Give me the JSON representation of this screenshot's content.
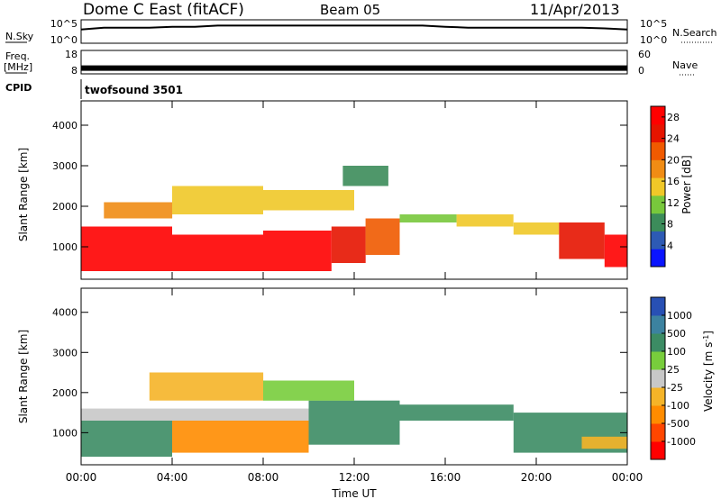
{
  "header": {
    "station": "Dome C East (fitACF)",
    "beam": "Beam 05",
    "date": "11/Apr/2013"
  },
  "side_labels": {
    "nsky": "N.Sky",
    "freq_line1": "Freq.",
    "freq_line2": "[MHz]",
    "cpid": "CPID",
    "nsearch": "N.Search",
    "nave": "Nave"
  },
  "cpid_value": "twofsound 3501",
  "noise_panel": {
    "left_ticks": [
      "10^5",
      "10^0"
    ],
    "right_ticks": [
      "10^5",
      "10^0"
    ]
  },
  "freq_panel": {
    "left_ticks": [
      "18",
      "8"
    ],
    "right_ticks": [
      "60",
      "0"
    ]
  },
  "x_axis": {
    "label": "Time UT",
    "ticks": [
      "00:00",
      "04:00",
      "08:00",
      "12:00",
      "16:00",
      "20:00",
      "00:00"
    ]
  },
  "colors": {
    "power": [
      "#0a14ff",
      "#2d5ab4",
      "#3c8c5a",
      "#78c83c",
      "#f0c828",
      "#f08c14",
      "#f05a00",
      "#e61400",
      "#ff0000"
    ],
    "velocity": [
      "#ff0000",
      "#ff4600",
      "#ff8c00",
      "#f5b428",
      "#c8c8c8",
      "#78cd3c",
      "#3c8c64",
      "#3c82a0",
      "#2850b4"
    ]
  },
  "chart_data": [
    {
      "type": "line",
      "title": "",
      "xlabel": "",
      "ylabel": "N.Sky",
      "x": [
        0,
        1,
        2,
        3,
        4,
        5,
        6,
        7,
        8,
        9,
        10,
        11,
        12,
        13,
        14,
        15,
        16,
        17,
        18,
        19,
        20,
        21,
        22,
        23,
        24
      ],
      "series": [
        {
          "name": "N.Sky",
          "values": [
            1000,
            3000,
            3000,
            3000,
            5000,
            5000,
            10000,
            10000,
            10000,
            10000,
            10000,
            10000,
            10000,
            10000,
            10000,
            10000,
            5000,
            3000,
            3000,
            3000,
            3000,
            3000,
            3000,
            2000,
            1000
          ]
        }
      ]
    },
    {
      "type": "line",
      "title": "",
      "xlabel": "",
      "ylabel": "Freq. [MHz]",
      "x": [
        0,
        24
      ],
      "series": [
        {
          "name": "Freq.",
          "values": [
            10,
            10
          ]
        }
      ],
      "ylim": [
        8,
        18
      ]
    },
    {
      "type": "heatmap",
      "title": "",
      "xlabel": "Time UT",
      "ylabel": "Slant Range [km]",
      "x_ticks": [
        "00:00",
        "04:00",
        "08:00",
        "12:00",
        "16:00",
        "20:00",
        "00:00"
      ],
      "xlim": [
        0,
        24
      ],
      "ylim": [
        200,
        4600
      ],
      "y_ticks": [
        1000,
        2000,
        3000,
        4000
      ],
      "colorbar": {
        "label": "Power [dB]",
        "ticks": [
          4,
          8,
          12,
          16,
          20,
          24,
          28
        ],
        "range": [
          0,
          30
        ]
      },
      "cells": [
        {
          "t0": 0,
          "t1": 4,
          "r0": 400,
          "r1": 1500,
          "v": 28
        },
        {
          "t0": 4,
          "t1": 8,
          "r0": 400,
          "r1": 1300,
          "v": 28
        },
        {
          "t0": 8,
          "t1": 11,
          "r0": 400,
          "r1": 1400,
          "v": 28
        },
        {
          "t0": 11,
          "t1": 12.5,
          "r0": 600,
          "r1": 1500,
          "v": 26
        },
        {
          "t0": 12.5,
          "t1": 14,
          "r0": 800,
          "r1": 1700,
          "v": 22
        },
        {
          "t0": 1,
          "t1": 4,
          "r0": 1700,
          "r1": 2100,
          "v": 18
        },
        {
          "t0": 4,
          "t1": 8,
          "r0": 1800,
          "r1": 2500,
          "v": 16
        },
        {
          "t0": 8,
          "t1": 12,
          "r0": 1900,
          "r1": 2400,
          "v": 14
        },
        {
          "t0": 11.5,
          "t1": 13.5,
          "r0": 2500,
          "r1": 3000,
          "v": 8
        },
        {
          "t0": 14,
          "t1": 16.5,
          "r0": 1600,
          "r1": 1800,
          "v": 12
        },
        {
          "t0": 16.5,
          "t1": 19,
          "r0": 1500,
          "r1": 1800,
          "v": 14
        },
        {
          "t0": 19,
          "t1": 21,
          "r0": 1300,
          "r1": 1600,
          "v": 16
        },
        {
          "t0": 21,
          "t1": 23,
          "r0": 700,
          "r1": 1600,
          "v": 26
        },
        {
          "t0": 23,
          "t1": 24,
          "r0": 500,
          "r1": 1300,
          "v": 28
        }
      ]
    },
    {
      "type": "heatmap",
      "title": "",
      "xlabel": "Time UT",
      "ylabel": "Slant Range [km]",
      "x_ticks": [
        "00:00",
        "04:00",
        "08:00",
        "12:00",
        "16:00",
        "20:00",
        "00:00"
      ],
      "xlim": [
        0,
        24
      ],
      "ylim": [
        200,
        4600
      ],
      "y_ticks": [
        1000,
        2000,
        3000,
        4000
      ],
      "colorbar": {
        "label": "Velocity [m s^-1]",
        "ticks": [
          "1000",
          "500",
          "100",
          "25",
          "-25",
          "-100",
          "-500",
          "-1000"
        ]
      },
      "cells": [
        {
          "t0": 0,
          "t1": 4,
          "r0": 400,
          "r1": 1300,
          "v": 300
        },
        {
          "t0": 0,
          "t1": 4,
          "r0": 1300,
          "r1": 1600,
          "v": 0
        },
        {
          "t0": 4,
          "t1": 10,
          "r0": 500,
          "r1": 1300,
          "v": -150
        },
        {
          "t0": 4,
          "t1": 10,
          "r0": 1300,
          "r1": 1600,
          "v": 0
        },
        {
          "t0": 10,
          "t1": 14,
          "r0": 700,
          "r1": 1800,
          "v": 200
        },
        {
          "t0": 3,
          "t1": 8,
          "r0": 1800,
          "r1": 2500,
          "v": -100
        },
        {
          "t0": 8,
          "t1": 12,
          "r0": 1800,
          "r1": 2300,
          "v": 50
        },
        {
          "t0": 14,
          "t1": 19,
          "r0": 1300,
          "r1": 1700,
          "v": 200
        },
        {
          "t0": 19,
          "t1": 24,
          "r0": 500,
          "r1": 1500,
          "v": 300
        },
        {
          "t0": 22,
          "t1": 24,
          "r0": 600,
          "r1": 900,
          "v": -50
        }
      ]
    }
  ]
}
